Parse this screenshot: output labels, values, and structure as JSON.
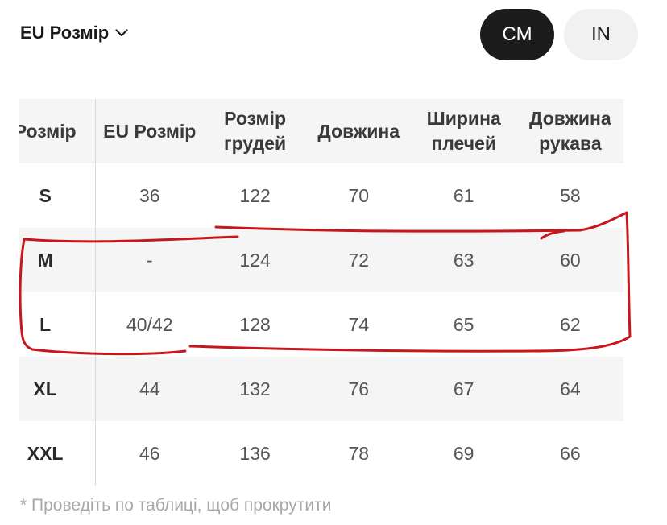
{
  "header": {
    "size_system_label": "EU Розмір",
    "units": [
      {
        "label": "CM",
        "active": true
      },
      {
        "label": "IN",
        "active": false
      }
    ]
  },
  "table": {
    "columns": [
      "Розмір",
      "EU Розмір",
      "Розмір грудей",
      "Довжина",
      "Ширина плечей",
      "Довжина рукава"
    ],
    "rows": [
      [
        "S",
        "36",
        "122",
        "70",
        "61",
        "58"
      ],
      [
        "M",
        "-",
        "124",
        "72",
        "63",
        "60"
      ],
      [
        "L",
        "40/42",
        "128",
        "74",
        "65",
        "62"
      ],
      [
        "XL",
        "44",
        "132",
        "76",
        "67",
        "64"
      ],
      [
        "XXL",
        "46",
        "136",
        "78",
        "69",
        "66"
      ]
    ]
  },
  "footnote": "* Проведіть по таблиці, щоб прокрутити",
  "colors": {
    "annotation": "#c8161d",
    "header_bg": "#f5f5f5",
    "active_unit": "#1c1c1c"
  }
}
